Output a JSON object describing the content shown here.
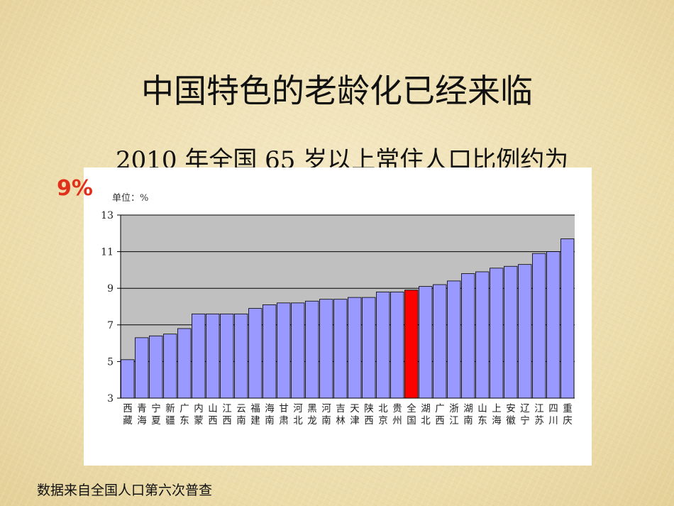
{
  "slide": {
    "title": "中国特色的老龄化已经来临",
    "subtitle": "2010 年全国 65 岁以上常住人口比例约为",
    "highlight": "9%",
    "source": "数据来自全国人口第六次普查"
  },
  "colors": {
    "bar": "#9999ff",
    "highlight_bar": "#ff0000",
    "plot_bg": "#c0c0c0",
    "highlight_text": "#e0301c"
  },
  "chart_data": {
    "type": "bar",
    "unit_label": "单位：%",
    "ylim": [
      3,
      13
    ],
    "yticks": [
      3,
      5,
      7,
      9,
      11,
      13
    ],
    "grid": true,
    "highlight_category": "全国",
    "categories": [
      "西藏",
      "青海",
      "宁夏",
      "新疆",
      "广东",
      "内蒙",
      "山西",
      "江西",
      "云南",
      "福建",
      "海南",
      "甘肃",
      "河北",
      "黑龙",
      "河南",
      "吉林",
      "天津",
      "陕西",
      "北京",
      "贵州",
      "全国",
      "湖北",
      "广西",
      "浙江",
      "湖南",
      "山东",
      "上海",
      "安徽",
      "辽宁",
      "江苏",
      "四川",
      "重庆"
    ],
    "values": [
      5.1,
      6.3,
      6.4,
      6.5,
      6.8,
      7.6,
      7.6,
      7.6,
      7.6,
      7.9,
      8.1,
      8.2,
      8.2,
      8.3,
      8.4,
      8.4,
      8.5,
      8.5,
      8.8,
      8.8,
      8.9,
      9.1,
      9.2,
      9.4,
      9.8,
      9.9,
      10.1,
      10.2,
      10.3,
      10.9,
      11.0,
      11.7
    ]
  }
}
